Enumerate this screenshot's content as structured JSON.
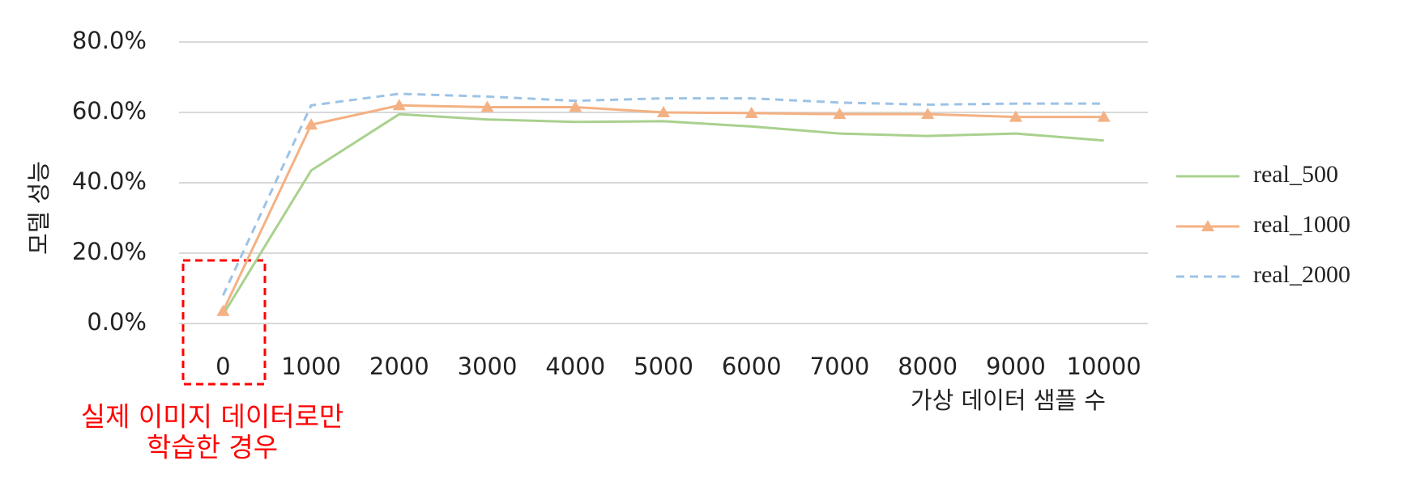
{
  "chart_data": {
    "type": "line",
    "y_label": "모델 성능",
    "x_label": "가상 데이터 샘플 수",
    "annotation": [
      "실제 이미지 데이터로만",
      "학습한 경우"
    ],
    "categories": [
      "0",
      "1000",
      "2000",
      "3000",
      "4000",
      "5000",
      "6000",
      "7000",
      "8000",
      "9000",
      "10000"
    ],
    "series": [
      {
        "name": "real_500",
        "color": "#a9d18e",
        "line_style": "solid",
        "marker": "none",
        "values": [
          2.5,
          43.5,
          59.5,
          58,
          57.3,
          57.5,
          56,
          54,
          53.3,
          54,
          52
        ]
      },
      {
        "name": "real_1000",
        "color": "#f4b183",
        "line_style": "solid",
        "marker": "triangle",
        "values": [
          3.5,
          56.5,
          62,
          61.5,
          61.5,
          60,
          59.8,
          59.5,
          59.5,
          58.7,
          58.7
        ]
      },
      {
        "name": "real_2000",
        "color": "#9dc3e6",
        "line_style": "dashed",
        "marker": "none",
        "values": [
          8,
          62,
          65.3,
          64.5,
          63.3,
          64,
          64,
          62.8,
          62.2,
          62.5,
          62.5
        ]
      }
    ],
    "ylim": [
      0,
      80
    ],
    "yticks": [
      {
        "value": 0,
        "label": "0.0%"
      },
      {
        "value": 20,
        "label": "20.0%"
      },
      {
        "value": 40,
        "label": "40.0%"
      },
      {
        "value": 60,
        "label": "60.0%"
      },
      {
        "value": 80,
        "label": "80.0%"
      }
    ],
    "grid": true,
    "legend": "right"
  }
}
